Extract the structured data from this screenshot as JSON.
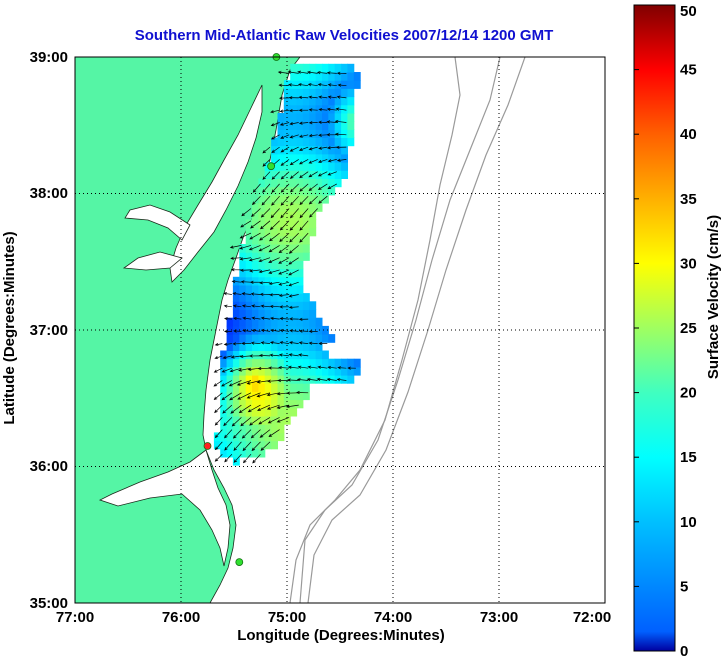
{
  "chart_data": {
    "type": "heatmap",
    "title": "Southern Mid-Atlantic Raw Velocities 2007/12/14 1200 GMT",
    "xlabel": "Longitude (Degrees:Minutes)",
    "ylabel": "Latitude (Degrees:Minutes)",
    "colorbar_label": "Surface Velocity (cm/s)",
    "x_ticks": [
      "77:00",
      "76:00",
      "75:00",
      "74:00",
      "73:00",
      "72:00"
    ],
    "y_ticks": [
      "39:00",
      "38:00",
      "37:00",
      "36:00",
      "35:00"
    ],
    "xlim": [
      -77,
      -72
    ],
    "ylim": [
      35,
      39
    ],
    "colorbar_ticks": [
      "0",
      "5",
      "10",
      "15",
      "20",
      "25",
      "30",
      "35",
      "40",
      "45",
      "50"
    ],
    "colorbar_range": [
      0,
      50
    ],
    "grid": true,
    "colors": {
      "land": "#55f5a5",
      "water": "#ffffff",
      "bathymetry": "#9a9a9a",
      "title": "#1010d0",
      "station": "#30e030",
      "station_highlight": "#ff2020"
    },
    "stations": [
      {
        "lon": -75.1,
        "lat": 39.0,
        "status": "active"
      },
      {
        "lon": -75.15,
        "lat": 38.2,
        "status": "active"
      },
      {
        "lon": -75.75,
        "lat": 36.15,
        "status": "highlight"
      },
      {
        "lon": -75.45,
        "lat": 35.3,
        "status": "active"
      }
    ]
  }
}
